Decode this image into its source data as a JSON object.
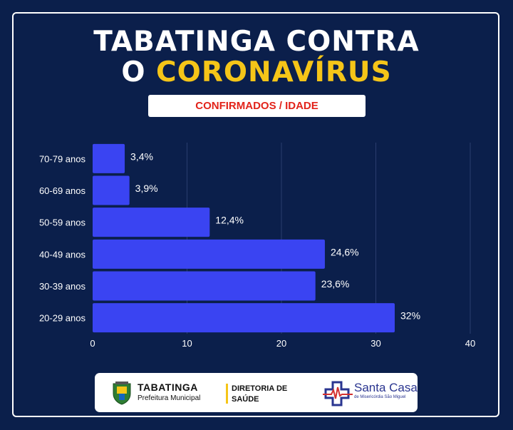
{
  "header": {
    "title_line1": "TABATINGA CONTRA",
    "title_line2_prefix": "O ",
    "title_line2_highlight": "CORONAVÍRUS",
    "subtitle": "CONFIRMADOS / IDADE"
  },
  "colors": {
    "background": "#0b1f4b",
    "bar": "#3a44f2",
    "highlight": "#f5c518",
    "subtitle_text": "#e2231a"
  },
  "chart_data": {
    "type": "bar",
    "orientation": "horizontal",
    "categories": [
      "70-79 anos",
      "60-69 anos",
      "50-59 anos",
      "40-49 anos",
      "30-39 anos",
      "20-29 anos"
    ],
    "values": [
      3.4,
      3.9,
      12.4,
      24.6,
      23.6,
      32
    ],
    "data_labels": [
      "3,4%",
      "3,9%",
      "12,4%",
      "24,6%",
      "23,6%",
      "32%"
    ],
    "x_ticks": [
      0,
      10,
      20,
      30,
      40
    ],
    "xlim": [
      0,
      40
    ],
    "grid": true
  },
  "footer": {
    "tabatinga_name": "TABATINGA",
    "tabatinga_sub": "Prefeitura Municipal",
    "diretoria_line1": "DIRETORIA DE",
    "diretoria_line2": "SAÚDE",
    "santa_casa_name": "Santa Casa",
    "santa_casa_sub": "de Misericórdia São Miguel"
  }
}
